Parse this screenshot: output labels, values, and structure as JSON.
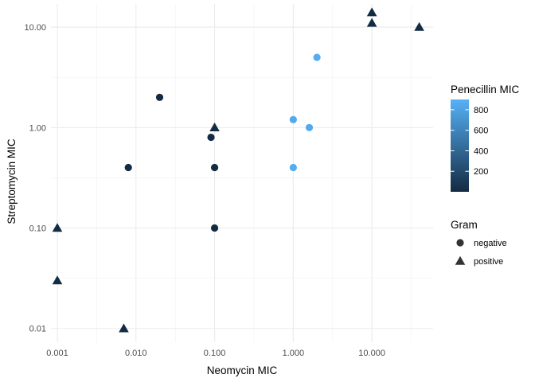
{
  "chart_data": {
    "type": "scatter",
    "xlabel": "Neomycin MIC",
    "ylabel": "Streptomycin MIC",
    "x_scale": "log10",
    "y_scale": "log10",
    "xlim": [
      0.00083,
      60
    ],
    "ylim": [
      0.0073,
      17
    ],
    "x_ticks": [
      0.001,
      0.01,
      0.1,
      1,
      10
    ],
    "x_tick_labels": [
      "0.001",
      "0.010",
      "0.100",
      "1.000",
      "10.000"
    ],
    "y_ticks": [
      0.01,
      0.1,
      1,
      10
    ],
    "y_tick_labels": [
      "0.01",
      "0.10",
      "1.00",
      "10.00"
    ],
    "grid": true,
    "color_legend": {
      "title": "Penecillin MIC",
      "ticks": [
        200,
        400,
        600,
        800
      ],
      "tick_labels": [
        "200",
        "400",
        "600",
        "800"
      ],
      "range": [
        0.001,
        900
      ],
      "low_color": "#132B43",
      "high_color": "#56B1F7"
    },
    "shape_legend": {
      "title": "Gram",
      "items": [
        {
          "label": "negative",
          "shape": "circle"
        },
        {
          "label": "positive",
          "shape": "triangle"
        }
      ]
    },
    "points": [
      {
        "x": 1,
        "y": 0.4,
        "penicillin": 870,
        "gram": "negative"
      },
      {
        "x": 0.001,
        "y": 0.1,
        "penicillin": 1,
        "gram": "positive"
      },
      {
        "x": 0.001,
        "y": 0.03,
        "penicillin": 0.005,
        "gram": "positive"
      },
      {
        "x": 0.1,
        "y": 0.1,
        "penicillin": 1,
        "gram": "negative"
      },
      {
        "x": 1.6,
        "y": 1.0,
        "penicillin": 850,
        "gram": "negative"
      },
      {
        "x": 0.007,
        "y": 0.01,
        "penicillin": 0.001,
        "gram": "positive"
      },
      {
        "x": 0.1,
        "y": 0.4,
        "penicillin": 1,
        "gram": "negative"
      },
      {
        "x": 0.02,
        "y": 2.0,
        "penicillin": 1,
        "gram": "negative"
      },
      {
        "x": 0.1,
        "y": 1.0,
        "penicillin": 0.1,
        "gram": "positive"
      },
      {
        "x": 0.008,
        "y": 0.4,
        "penicillin": 1,
        "gram": "negative"
      },
      {
        "x": 0.09,
        "y": 0.8,
        "penicillin": 1,
        "gram": "negative"
      },
      {
        "x": 2.0,
        "y": 5.0,
        "penicillin": 870,
        "gram": "negative"
      },
      {
        "x": 1.0,
        "y": 1.2,
        "penicillin": 850,
        "gram": "negative"
      },
      {
        "x": 10,
        "y": 14,
        "penicillin": 1,
        "gram": "positive"
      },
      {
        "x": 10,
        "y": 11,
        "penicillin": 0.005,
        "gram": "positive"
      },
      {
        "x": 40,
        "y": 10,
        "penicillin": 0.001,
        "gram": "positive"
      }
    ]
  }
}
